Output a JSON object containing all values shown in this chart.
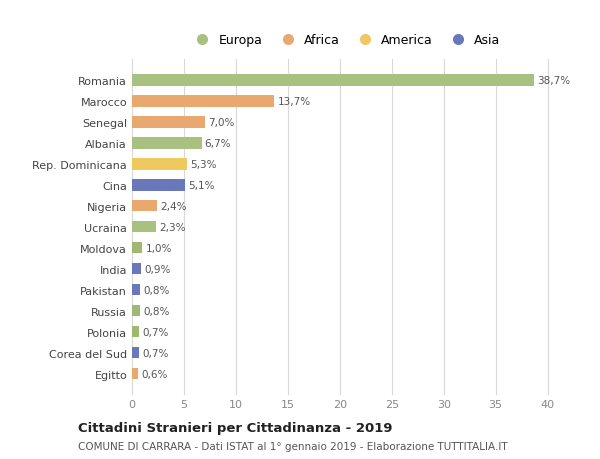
{
  "countries": [
    "Romania",
    "Marocco",
    "Senegal",
    "Albania",
    "Rep. Dominicana",
    "Cina",
    "Nigeria",
    "Ucraina",
    "Moldova",
    "India",
    "Pakistan",
    "Russia",
    "Polonia",
    "Corea del Sud",
    "Egitto"
  ],
  "values": [
    38.7,
    13.7,
    7.0,
    6.7,
    5.3,
    5.1,
    2.4,
    2.3,
    1.0,
    0.9,
    0.8,
    0.8,
    0.7,
    0.7,
    0.6
  ],
  "labels": [
    "38,7%",
    "13,7%",
    "7,0%",
    "6,7%",
    "5,3%",
    "5,1%",
    "2,4%",
    "2,3%",
    "1,0%",
    "0,9%",
    "0,8%",
    "0,8%",
    "0,7%",
    "0,7%",
    "0,6%"
  ],
  "colors": [
    "#a8c080",
    "#e8a870",
    "#e8a870",
    "#a8c080",
    "#f0c860",
    "#6878b8",
    "#e8a870",
    "#a8c080",
    "#a0b870",
    "#6878b8",
    "#6878b8",
    "#a0b870",
    "#a0b870",
    "#6878b8",
    "#e8a870"
  ],
  "legend_labels": [
    "Europa",
    "Africa",
    "America",
    "Asia"
  ],
  "legend_colors": [
    "#a8c080",
    "#e8a870",
    "#f0c860",
    "#6878b8"
  ],
  "title": "Cittadini Stranieri per Cittadinanza - 2019",
  "subtitle": "COMUNE DI CARRARA - Dati ISTAT al 1° gennaio 2019 - Elaborazione TUTTITALIA.IT",
  "xlim": [
    0,
    41
  ],
  "xticks": [
    0,
    5,
    10,
    15,
    20,
    25,
    30,
    35,
    40
  ],
  "bg_color": "#ffffff",
  "grid_color": "#d8d8d8",
  "bar_height": 0.55
}
